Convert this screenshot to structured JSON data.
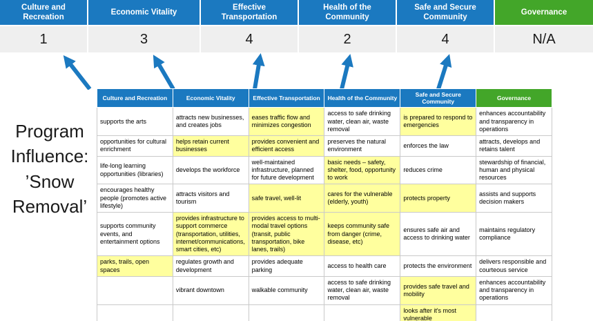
{
  "title": "Program Influence: ’Snow Removal’",
  "colors": {
    "header-blue": "#1b79c0",
    "header-green": "#43a629",
    "highlight-yellow": "#ffff9e",
    "score-bg": "#efefef",
    "grid-border": "#c9c9c9",
    "arrow-blue": "#1b79c0",
    "text-dark": "#1a1a1a"
  },
  "summary": {
    "columns": [
      {
        "label": "Culture and Recreation",
        "score": "1",
        "theme": "blue"
      },
      {
        "label": "Economic Vitality",
        "score": "3",
        "theme": "blue"
      },
      {
        "label": "Effective Transportation",
        "score": "4",
        "theme": "blue"
      },
      {
        "label": "Health of the Community",
        "score": "2",
        "theme": "blue"
      },
      {
        "label": "Safe and Secure Community",
        "score": "4",
        "theme": "blue"
      },
      {
        "label": "Governance",
        "score": "N/A",
        "theme": "green"
      }
    ]
  },
  "matrix": {
    "headers": [
      {
        "label": "Culture and Recreation",
        "theme": "blue"
      },
      {
        "label": "Economic Vitality",
        "theme": "blue"
      },
      {
        "label": "Effective Transportation",
        "theme": "blue"
      },
      {
        "label": "Health of the Community",
        "theme": "blue"
      },
      {
        "label": "Safe and Secure Community",
        "theme": "blue"
      },
      {
        "label": "Governance",
        "theme": "green"
      }
    ],
    "rows": [
      [
        {
          "text": "supports the arts",
          "highlight": false
        },
        {
          "text": "attracts new businesses, and creates jobs",
          "highlight": false
        },
        {
          "text": "eases traffic flow and minimizes congestion",
          "highlight": true
        },
        {
          "text": "access to safe drinking water, clean air, waste removal",
          "highlight": false
        },
        {
          "text": "is prepared to respond to emergencies",
          "highlight": true
        },
        {
          "text": "enhances accountability and transparency in operations",
          "highlight": false
        }
      ],
      [
        {
          "text": "opportunities for cultural enrichment",
          "highlight": false
        },
        {
          "text": "helps retain current businesses",
          "highlight": true
        },
        {
          "text": "provides convenient and efficient access",
          "highlight": true
        },
        {
          "text": "preserves the natural environment",
          "highlight": false
        },
        {
          "text": "enforces the law",
          "highlight": false
        },
        {
          "text": "attracts, develops and retains talent",
          "highlight": false
        }
      ],
      [
        {
          "text": "life-long learning opportunities (libraries)",
          "highlight": false
        },
        {
          "text": "develops the workforce",
          "highlight": false
        },
        {
          "text": "well-maintained infrastructure, planned for future development",
          "highlight": false
        },
        {
          "text": "basic needs – safety, shelter, food, opportunity to work",
          "highlight": true
        },
        {
          "text": "reduces crime",
          "highlight": false
        },
        {
          "text": "stewardship of financial, human and physical resources",
          "highlight": false
        }
      ],
      [
        {
          "text": "encourages healthy people (promotes active lifestyle)",
          "highlight": false
        },
        {
          "text": "attracts visitors and tourism",
          "highlight": false
        },
        {
          "text": "safe travel, well-lit",
          "highlight": true
        },
        {
          "text": "cares for the vulnerable (elderly, youth)",
          "highlight": true
        },
        {
          "text": "protects property",
          "highlight": true
        },
        {
          "text": "assists and supports decision makers",
          "highlight": false
        }
      ],
      [
        {
          "text": "supports community events, and entertainment options",
          "highlight": false
        },
        {
          "text": "provides infrastructure to support commerce (transportation, utilities, internet/communications, smart cities, etc)",
          "highlight": true
        },
        {
          "text": "provides access to multi-modal travel options (transit, public transportation, bike lanes, trails)",
          "highlight": true
        },
        {
          "text": "keeps community safe from danger (crime, disease, etc)",
          "highlight": true
        },
        {
          "text": "ensures safe air and access to drinking water",
          "highlight": false
        },
        {
          "text": "maintains regulatory compliance",
          "highlight": false
        }
      ],
      [
        {
          "text": "parks, trails, open spaces",
          "highlight": true
        },
        {
          "text": "regulates growth and development",
          "highlight": false
        },
        {
          "text": "provides adequate parking",
          "highlight": false
        },
        {
          "text": "access to health care",
          "highlight": false
        },
        {
          "text": "protects the environment",
          "highlight": false
        },
        {
          "text": "delivers responsible and courteous service",
          "highlight": false
        }
      ],
      [
        {
          "text": "",
          "highlight": false
        },
        {
          "text": "vibrant downtown",
          "highlight": false
        },
        {
          "text": "walkable community",
          "highlight": false
        },
        {
          "text": "access to safe drinking water, clean air, waste removal",
          "highlight": false
        },
        {
          "text": "provides safe travel and mobility",
          "highlight": true
        },
        {
          "text": "enhances accountability and transparency in operations",
          "highlight": false
        }
      ],
      [
        {
          "text": "",
          "highlight": false
        },
        {
          "text": "",
          "highlight": false
        },
        {
          "text": "",
          "highlight": false
        },
        {
          "text": "",
          "highlight": false
        },
        {
          "text": "looks after it's most vulnerable",
          "highlight": true
        },
        {
          "text": "",
          "highlight": false
        }
      ]
    ]
  }
}
